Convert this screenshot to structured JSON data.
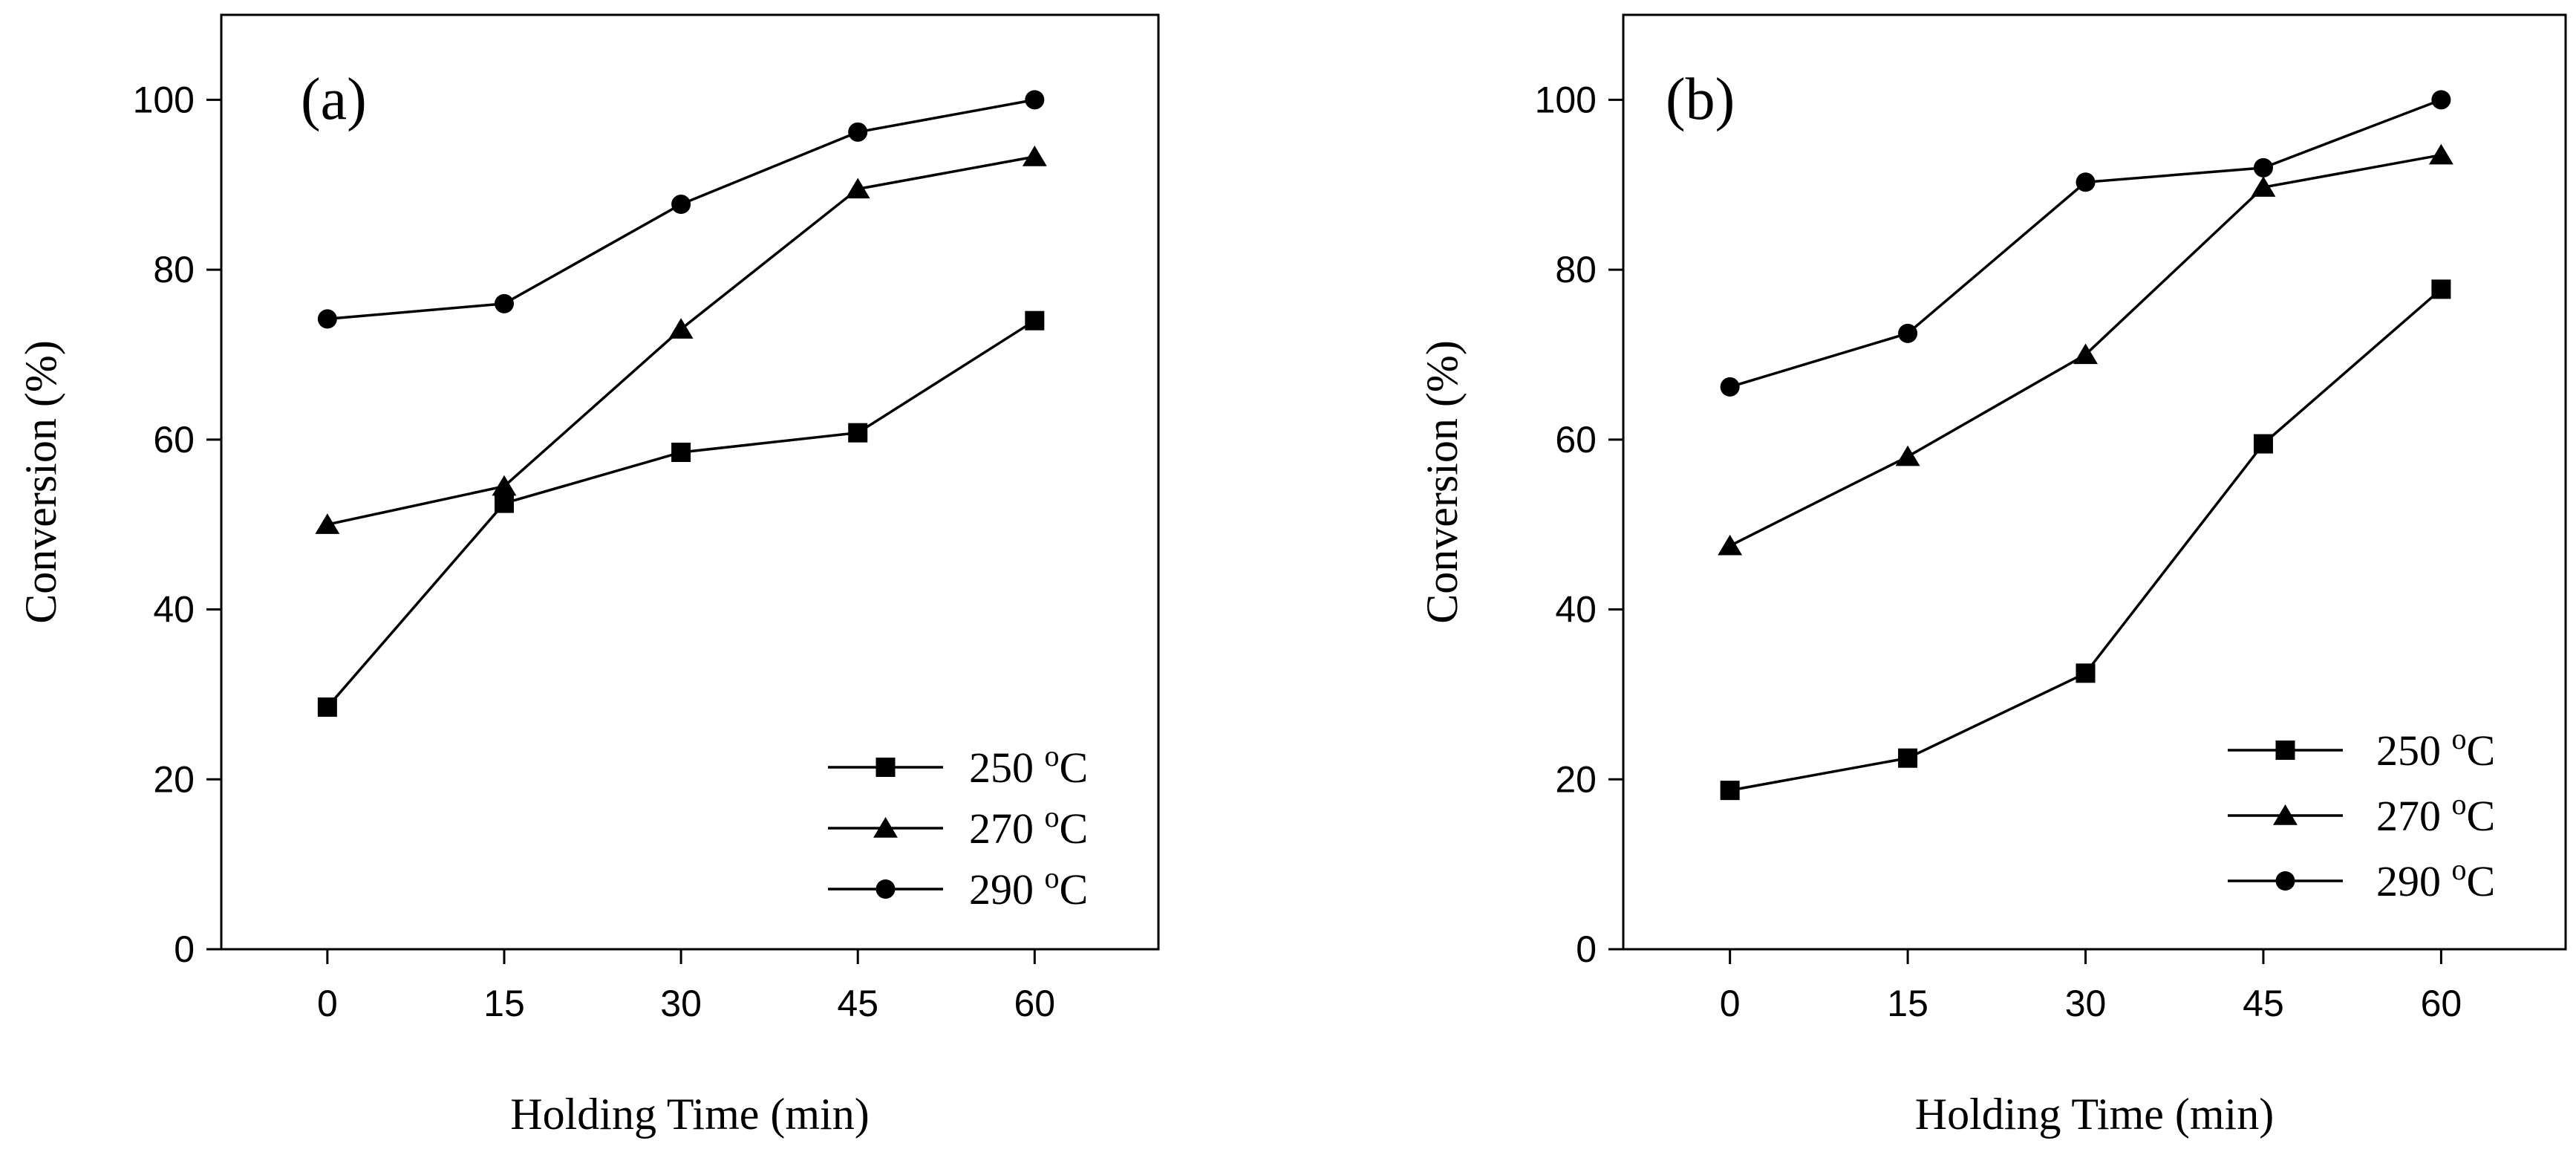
{
  "chart_data": [
    {
      "type": "line",
      "panel_label": "(a)",
      "xlabel": "Holding Time (min)",
      "ylabel": "Conversion (%)",
      "x": [
        0,
        15,
        30,
        45,
        60
      ],
      "x_ticks": [
        "0",
        "15",
        "30",
        "45",
        "60"
      ],
      "y_ticks": [
        "0",
        "20",
        "40",
        "60",
        "80",
        "100"
      ],
      "xlim": [
        -9,
        70.5
      ],
      "ylim": [
        0,
        110
      ],
      "grid": false,
      "legend_position": "bottom-right",
      "series": [
        {
          "name": "250 oC",
          "label": "250 ",
          "sup": "o",
          "unit": "C",
          "marker": "square",
          "values": [
            28.5,
            52.5,
            58.5,
            60.8,
            74
          ]
        },
        {
          "name": "270 oC",
          "label": "270 ",
          "sup": "o",
          "unit": "C",
          "marker": "triangle",
          "values": [
            50,
            54.5,
            73,
            89.5,
            93.3
          ]
        },
        {
          "name": "290 oC",
          "label": "290 ",
          "sup": "o",
          "unit": "C",
          "marker": "circle",
          "values": [
            74.2,
            76,
            87.7,
            96.2,
            100
          ]
        }
      ]
    },
    {
      "type": "line",
      "panel_label": "(b)",
      "xlabel": "Holding Time (min)",
      "ylabel": "Conversion (%)",
      "x": [
        0,
        15,
        30,
        45,
        60
      ],
      "x_ticks": [
        "0",
        "15",
        "30",
        "45",
        "60"
      ],
      "y_ticks": [
        "0",
        "20",
        "40",
        "60",
        "80",
        "100"
      ],
      "xlim": [
        -9,
        70.5
      ],
      "ylim": [
        0,
        110
      ],
      "grid": false,
      "legend_position": "bottom-right",
      "series": [
        {
          "name": "250 oC",
          "label": "250 ",
          "sup": "o",
          "unit": "C",
          "marker": "square",
          "values": [
            18.7,
            22.5,
            32.5,
            59.5,
            77.7
          ]
        },
        {
          "name": "270 oC",
          "label": "270 ",
          "sup": "o",
          "unit": "C",
          "marker": "triangle",
          "values": [
            47.5,
            58,
            70,
            89.7,
            93.5
          ]
        },
        {
          "name": "290 oC",
          "label": "290 ",
          "sup": "o",
          "unit": "C",
          "marker": "circle",
          "values": [
            66.2,
            72.5,
            90.3,
            92,
            100
          ]
        }
      ]
    }
  ]
}
